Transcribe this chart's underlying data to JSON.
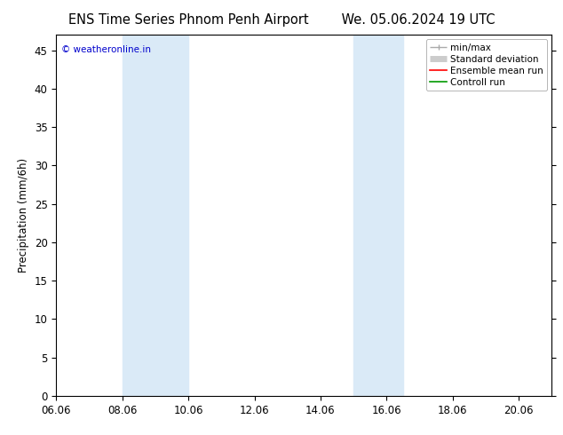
{
  "title_left": "ENS Time Series Phnom Penh Airport",
  "title_right": "We. 05.06.2024 19 UTC",
  "ylabel": "Precipitation (mm/6h)",
  "watermark": "© weatheronline.in",
  "watermark_color": "#0000cc",
  "background_color": "#ffffff",
  "xmin": 6.06,
  "xmax": 21.06,
  "ymin": 0,
  "ymax": 47,
  "xticks": [
    6.06,
    8.06,
    10.06,
    12.06,
    14.06,
    16.06,
    18.06,
    20.06
  ],
  "xtick_labels": [
    "06.06",
    "08.06",
    "10.06",
    "12.06",
    "14.06",
    "16.06",
    "18.06",
    "20.06"
  ],
  "yticks": [
    0,
    5,
    10,
    15,
    20,
    25,
    30,
    35,
    40,
    45
  ],
  "shaded_regions": [
    {
      "xmin": 8.06,
      "xmax": 10.06,
      "color": "#daeaf7"
    },
    {
      "xmin": 15.06,
      "xmax": 16.56,
      "color": "#daeaf7"
    }
  ],
  "legend_minmax_color": "#aaaaaa",
  "legend_std_color": "#cccccc",
  "legend_ens_color": "#ff0000",
  "legend_ctrl_color": "#009900",
  "title_fontsize": 10.5,
  "tick_fontsize": 8.5,
  "ylabel_fontsize": 8.5,
  "watermark_fontsize": 7.5,
  "legend_fontsize": 7.5
}
